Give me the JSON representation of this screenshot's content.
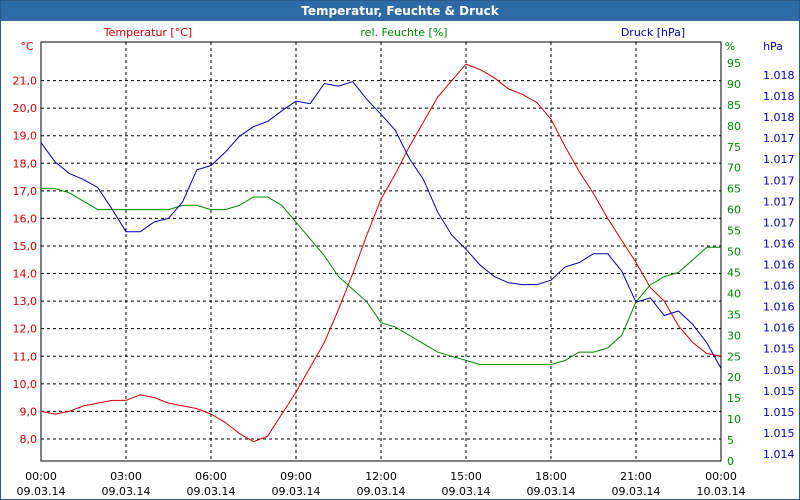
{
  "window": {
    "title": "Temperatur, Feuchte & Druck"
  },
  "colors": {
    "temperature": "#cc0000",
    "humidity": "#008800",
    "pressure": "#0000aa",
    "titlebar": "#2e6aa5",
    "grid": "#000000"
  },
  "chart_data": {
    "type": "line",
    "title": "Temperatur, Feuchte & Druck",
    "grid": true,
    "x": {
      "range": [
        "09.03.14 00:00",
        "10.03.14 00:00"
      ],
      "ticks": [
        {
          "time": "00:00",
          "date": "09.03.14"
        },
        {
          "time": "03:00",
          "date": "09.03.14"
        },
        {
          "time": "06:00",
          "date": "09.03.14"
        },
        {
          "time": "09:00",
          "date": "09.03.14"
        },
        {
          "time": "12:00",
          "date": "09.03.14"
        },
        {
          "time": "15:00",
          "date": "09.03.14"
        },
        {
          "time": "18:00",
          "date": "09.03.14"
        },
        {
          "time": "21:00",
          "date": "09.03.14"
        },
        {
          "time": "00:00",
          "date": "10.03.14"
        }
      ]
    },
    "axes": {
      "left": {
        "label": "Temperatur [°C]",
        "unit": "°C",
        "ylim": [
          7.2,
          22.4
        ],
        "ticks": [
          "8,0",
          "9,0",
          "10,0",
          "11,0",
          "12,0",
          "13,0",
          "14,0",
          "15,0",
          "16,0",
          "17,0",
          "18,0",
          "19,0",
          "20,0",
          "21,0"
        ]
      },
      "humidity": {
        "label": "rel. Feuchte [%]",
        "unit": "%",
        "ylim": [
          0,
          100
        ],
        "ticks": [
          "0",
          "5",
          "10",
          "15",
          "20",
          "25",
          "30",
          "35",
          "40",
          "45",
          "50",
          "55",
          "60",
          "65",
          "70",
          "75",
          "80",
          "85",
          "90",
          "95"
        ]
      },
      "pressure": {
        "label": "Druck [hPa]",
        "unit": "hPa",
        "ticks": [
          "1.014",
          "1.015",
          "1.015",
          "1.015",
          "1.015",
          "1.015",
          "1.016",
          "1.016",
          "1.016",
          "1.016",
          "1.016",
          "1.017",
          "1.017",
          "1.017",
          "1.017",
          "1.017",
          "1.018",
          "1.018",
          "1.018"
        ]
      }
    },
    "series": [
      {
        "name": "Temperatur [°C]",
        "axis": "left",
        "color": "#cc0000",
        "x_hours": [
          0,
          0.5,
          1,
          1.5,
          2,
          2.5,
          3,
          3.5,
          4,
          4.5,
          5,
          5.5,
          6,
          6.5,
          7,
          7.5,
          8,
          8.5,
          9,
          9.5,
          10,
          10.5,
          11,
          11.5,
          12,
          12.5,
          13,
          13.5,
          14,
          14.5,
          15,
          15.5,
          16,
          16.5,
          17,
          17.5,
          18,
          18.5,
          19,
          19.5,
          20,
          20.5,
          21,
          21.5,
          22,
          22.5,
          23,
          23.5,
          24
        ],
        "values": [
          9.0,
          8.9,
          9.0,
          9.2,
          9.3,
          9.4,
          9.4,
          9.6,
          9.5,
          9.3,
          9.2,
          9.1,
          8.9,
          8.6,
          8.2,
          7.9,
          8.1,
          8.9,
          9.7,
          10.6,
          11.5,
          12.7,
          14.0,
          15.4,
          16.7,
          17.6,
          18.6,
          19.5,
          20.4,
          21.0,
          21.6,
          21.4,
          21.1,
          20.7,
          20.5,
          20.2,
          19.6,
          18.6,
          17.7,
          16.9,
          16.0,
          15.2,
          14.4,
          13.5,
          13.0,
          12.1,
          11.5,
          11.1,
          11.0
        ]
      },
      {
        "name": "rel. Feuchte [%]",
        "axis": "humidity",
        "color": "#008800",
        "x_hours": [
          0,
          0.5,
          1,
          1.5,
          2,
          2.5,
          3,
          3.5,
          4,
          4.5,
          5,
          5.5,
          6,
          6.5,
          7,
          7.5,
          8,
          8.5,
          9,
          9.5,
          10,
          10.5,
          11,
          11.5,
          12,
          12.5,
          13,
          13.5,
          14,
          14.5,
          15,
          15.5,
          16,
          16.5,
          17,
          17.5,
          18,
          18.5,
          19,
          19.5,
          20,
          20.5,
          21,
          21.5,
          22,
          22.5,
          23,
          23.5,
          24
        ],
        "values": [
          65,
          65,
          64,
          62,
          60,
          60,
          60,
          60,
          60,
          60,
          61,
          61,
          60,
          60,
          61,
          63,
          63,
          61,
          57,
          53,
          49,
          44,
          41,
          38,
          33,
          32,
          30,
          28,
          26,
          25,
          24,
          23,
          23,
          23,
          23,
          23,
          23,
          24,
          26,
          26,
          27,
          30,
          38,
          42,
          44,
          45,
          48,
          51,
          51
        ]
      },
      {
        "name": "Druck [hPa]",
        "axis": "pressure",
        "color": "#0000aa",
        "x_hours": [
          0,
          0.5,
          1,
          1.5,
          2,
          2.5,
          3,
          3.5,
          4,
          4.5,
          5,
          5.5,
          6,
          6.5,
          7,
          7.5,
          8,
          8.5,
          9,
          9.5,
          10,
          10.5,
          11,
          11.5,
          12,
          12.5,
          13,
          13.5,
          14,
          14.5,
          15,
          15.5,
          16,
          16.5,
          17,
          17.5,
          18,
          18.5,
          19,
          19.5,
          20,
          20.5,
          21,
          21.5,
          22,
          22.5,
          23,
          23.5,
          24
        ],
        "values": [
          1.01786,
          1.01764,
          1.01751,
          1.01744,
          1.01735,
          1.01711,
          1.01685,
          1.01685,
          1.01696,
          1.017,
          1.01719,
          1.01755,
          1.0176,
          1.01775,
          1.01793,
          1.01804,
          1.0181,
          1.01822,
          1.01833,
          1.0183,
          1.01853,
          1.0185,
          1.01855,
          1.01835,
          1.01818,
          1.018,
          1.01768,
          1.01744,
          1.01707,
          1.01681,
          1.01665,
          1.01647,
          1.01634,
          1.01627,
          1.01625,
          1.01625,
          1.0163,
          1.01645,
          1.0165,
          1.0166,
          1.0166,
          1.0164,
          1.01605,
          1.0161,
          1.0159,
          1.01595,
          1.0158,
          1.01559,
          1.0153
        ]
      }
    ]
  }
}
